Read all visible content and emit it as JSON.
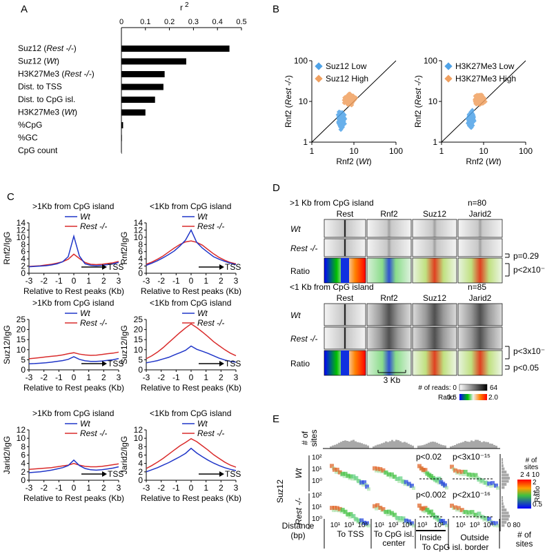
{
  "panel_labels": [
    "A",
    "B",
    "C",
    "D",
    "E"
  ],
  "colors": {
    "wt": "#1f35c8",
    "rest": "#d92a2a",
    "low": "#4fa3e8",
    "high": "#f0a060"
  },
  "chart_data": [
    {
      "id": "A",
      "type": "bar",
      "orientation": "horizontal",
      "axis_title": "r²",
      "xlim": [
        0,
        0.5
      ],
      "ticks": [
        "0",
        "0.1",
        "0.2",
        "0.3",
        "0.4",
        "0.5"
      ],
      "categories": [
        {
          "pre": "Suz12 (",
          "it": "Rest -/-",
          "post": ")"
        },
        {
          "pre": "Suz12 (",
          "it": "Wt",
          "post": ")"
        },
        {
          "pre": "H3K27Me3 (",
          "it": "Rest -/-",
          "post": ")"
        },
        {
          "pre": "Dist. to TSS",
          "it": "",
          "post": ""
        },
        {
          "pre": "Dist. to CpG isl.",
          "it": "",
          "post": ""
        },
        {
          "pre": "H3K27Me3 (",
          "it": "Wt",
          "post": ")"
        },
        {
          "pre": "%CpG",
          "it": "",
          "post": ""
        },
        {
          "pre": "%GC",
          "it": "",
          "post": ""
        },
        {
          "pre": "CpG count",
          "it": "",
          "post": ""
        }
      ],
      "values": [
        0.45,
        0.27,
        0.18,
        0.175,
        0.14,
        0.1,
        0.007,
        0.002,
        0.001
      ]
    },
    {
      "id": "B1",
      "type": "scatter",
      "xscale": "log",
      "yscale": "log",
      "xlim": [
        1,
        100
      ],
      "ylim": [
        1,
        100
      ],
      "xlabel": {
        "pre": "Rnf2 (",
        "it": "Wt",
        "post": ")"
      },
      "ylabel": {
        "pre": "Rnf2 (",
        "it": "Rest -/-",
        "post": ")"
      },
      "ticks": [
        "1",
        "10",
        "100"
      ],
      "series": [
        {
          "name": "Suz12 Low"
        },
        {
          "name": "Suz12 High"
        }
      ]
    },
    {
      "id": "B2",
      "type": "scatter",
      "xscale": "log",
      "yscale": "log",
      "xlim": [
        1,
        100
      ],
      "ylim": [
        1,
        100
      ],
      "xlabel": {
        "pre": "Rnf2 (",
        "it": "Wt",
        "post": ")"
      },
      "ylabel": {
        "pre": "Rnf2 (",
        "it": "Rest -/-",
        "post": ")"
      },
      "ticks": [
        "1",
        "10",
        "100"
      ],
      "series": [
        {
          "name": "H3K27Me3 Low"
        },
        {
          "name": "H3K27Me3 High"
        }
      ]
    }
  ],
  "panel_c": {
    "xlabel": "Relative to Rest peaks (Kb)",
    "xticks": [
      "-3",
      "-2",
      "-1",
      "0",
      "1",
      "2",
      "3"
    ],
    "tss": "TSS",
    "legend": [
      "Wt",
      "Rest -/-"
    ],
    "plots": [
      {
        "title": ">1Kb from CpG island",
        "ylabel": "Rnf2/IgG",
        "ymax": 14,
        "ticks": [
          "0",
          "2",
          "4",
          "6",
          "8",
          "10",
          "12",
          "14"
        ],
        "wt": [
          1.8,
          1.9,
          2.0,
          2.1,
          2.3,
          2.6,
          3.2,
          4.6,
          10.3,
          4.8,
          2.6,
          2.2,
          2.1,
          2.2,
          2.4,
          2.6,
          3.0
        ],
        "rest": [
          1.9,
          2.0,
          2.1,
          2.3,
          2.5,
          2.8,
          3.2,
          3.9,
          5.3,
          4.1,
          3.0,
          2.5,
          2.4,
          2.5,
          2.7,
          2.9,
          3.3
        ]
      },
      {
        "title": "<1Kb from CpG island",
        "ylabel": "Rnf2/IgG",
        "ymax": 14,
        "ticks": [
          "0",
          "2",
          "4",
          "6",
          "8",
          "10",
          "12",
          "14"
        ],
        "wt": [
          2.2,
          2.8,
          3.5,
          4.3,
          5.2,
          6.2,
          7.6,
          9.2,
          12.0,
          8.6,
          7.0,
          5.8,
          4.6,
          3.9,
          3.3,
          2.8,
          2.4
        ],
        "rest": [
          2.5,
          3.1,
          3.9,
          4.8,
          5.9,
          7.0,
          8.0,
          8.7,
          9.0,
          8.6,
          7.8,
          6.6,
          5.4,
          4.4,
          3.6,
          3.0,
          2.6
        ]
      },
      {
        "title": ">1Kb from CpG island",
        "ylabel": "Suz12/IgG",
        "ymax": 25,
        "ticks": [
          "0",
          "5",
          "10",
          "15",
          "20",
          "25"
        ],
        "wt": [
          3.0,
          3.1,
          3.3,
          3.5,
          3.8,
          4.2,
          4.6,
          5.2,
          6.5,
          5.2,
          4.5,
          4.2,
          4.2,
          4.4,
          4.7,
          5.0,
          5.6
        ],
        "rest": [
          5.5,
          5.8,
          6.1,
          6.4,
          6.7,
          7.0,
          7.4,
          8.0,
          8.5,
          7.8,
          7.4,
          7.2,
          7.3,
          7.6,
          8.0,
          8.3,
          8.8
        ]
      },
      {
        "title": "<1Kb from CpG island",
        "ylabel": "Suz12/IgG",
        "ymax": 25,
        "ticks": [
          "0",
          "5",
          "10",
          "15",
          "20",
          "25"
        ],
        "wt": [
          3.5,
          4.0,
          4.6,
          5.4,
          6.2,
          7.4,
          8.5,
          9.7,
          11.8,
          10.2,
          9.2,
          8.2,
          7.0,
          5.8,
          4.9,
          4.2,
          3.8
        ],
        "rest": [
          5.5,
          7.0,
          8.8,
          11.0,
          13.5,
          16.0,
          18.5,
          20.8,
          22.8,
          21.0,
          18.8,
          16.5,
          14.0,
          12.0,
          10.0,
          8.3,
          7.0
        ]
      },
      {
        "title": ">1Kb from CpG island",
        "ylabel": "Jarid2/IgG",
        "ymax": 12,
        "ticks": [
          "0",
          "2",
          "4",
          "6",
          "8",
          "10",
          "12"
        ],
        "wt": [
          1.8,
          1.9,
          2.0,
          2.2,
          2.4,
          2.7,
          3.0,
          3.5,
          4.8,
          3.5,
          2.8,
          2.5,
          2.4,
          2.5,
          2.7,
          2.9,
          3.2
        ],
        "rest": [
          2.6,
          2.7,
          2.8,
          2.9,
          3.0,
          3.2,
          3.4,
          3.6,
          4.0,
          3.6,
          3.3,
          3.2,
          3.2,
          3.3,
          3.5,
          3.7,
          3.9
        ]
      },
      {
        "title": "<1Kb from CpG island",
        "ylabel": "Jarid2/IgG",
        "ymax": 12,
        "ticks": [
          "0",
          "2",
          "4",
          "6",
          "8",
          "10",
          "12"
        ],
        "wt": [
          2.0,
          2.5,
          3.0,
          3.6,
          4.2,
          4.9,
          5.6,
          6.4,
          7.6,
          6.5,
          5.6,
          4.8,
          4.1,
          3.5,
          3.0,
          2.6,
          2.3
        ],
        "rest": [
          2.8,
          3.5,
          4.3,
          5.2,
          6.2,
          7.2,
          8.2,
          9.0,
          9.9,
          9.2,
          8.2,
          7.2,
          6.1,
          5.2,
          4.3,
          3.6,
          3.1
        ]
      }
    ]
  },
  "panel_d": {
    "top_title": ">1 Kb from CpG island",
    "top_n": "n=80",
    "bottom_title": "<1 Kb from CpG island",
    "bottom_n": "n=85",
    "columns": [
      "Rest",
      "Rnf2",
      "Suz12",
      "Jarid2"
    ],
    "rows": [
      {
        "pre": "",
        "it": "Wt"
      },
      {
        "pre": "",
        "it": "Rest -/-"
      },
      {
        "pre": "Ratio",
        "it": ""
      }
    ],
    "top_pvals": [
      "p=0.29",
      "p<2x10⁻³³"
    ],
    "bottom_pvals": [
      "p<3x10⁻⁷",
      "p<0.05"
    ],
    "scale_bar": "3 Kb",
    "reads_label": "# of reads: 0",
    "reads_max": "64",
    "ratio_label": "Ratio:",
    "ratio_min": "0.5",
    "ratio_max": "2.0"
  },
  "panel_e": {
    "sites_label": [
      "# of",
      "sites"
    ],
    "suz12": "Suz12",
    "rows": [
      "Wt",
      "Rest -/-"
    ],
    "yticks": [
      "10²",
      "10¹",
      "10⁰"
    ],
    "pvals_wt": [
      "p<0.02",
      "p<3x10⁻¹⁵"
    ],
    "pvals_rest": [
      "p<0.002",
      "p<2x10⁻¹⁶"
    ],
    "inside": "Inside",
    "outside": "Outside",
    "distance": [
      "Distance",
      "(bp)"
    ],
    "groups": [
      "To TSS",
      "To CpG isl. center",
      "To CpG isl. border"
    ],
    "group_ticks": [
      "10¹",
      "10³",
      "10⁵"
    ],
    "border_ticks": [
      "10³",
      "10¹",
      "10³",
      "10⁵"
    ],
    "hist_ticks": "0 80",
    "hist_label": [
      "# of",
      "sites"
    ],
    "legend_title": [
      "# of",
      "sites"
    ],
    "legend_counts": "2  4  10",
    "ratio_label": "Ratio",
    "ratio_ticks": [
      "2",
      "1",
      "0.5"
    ]
  }
}
